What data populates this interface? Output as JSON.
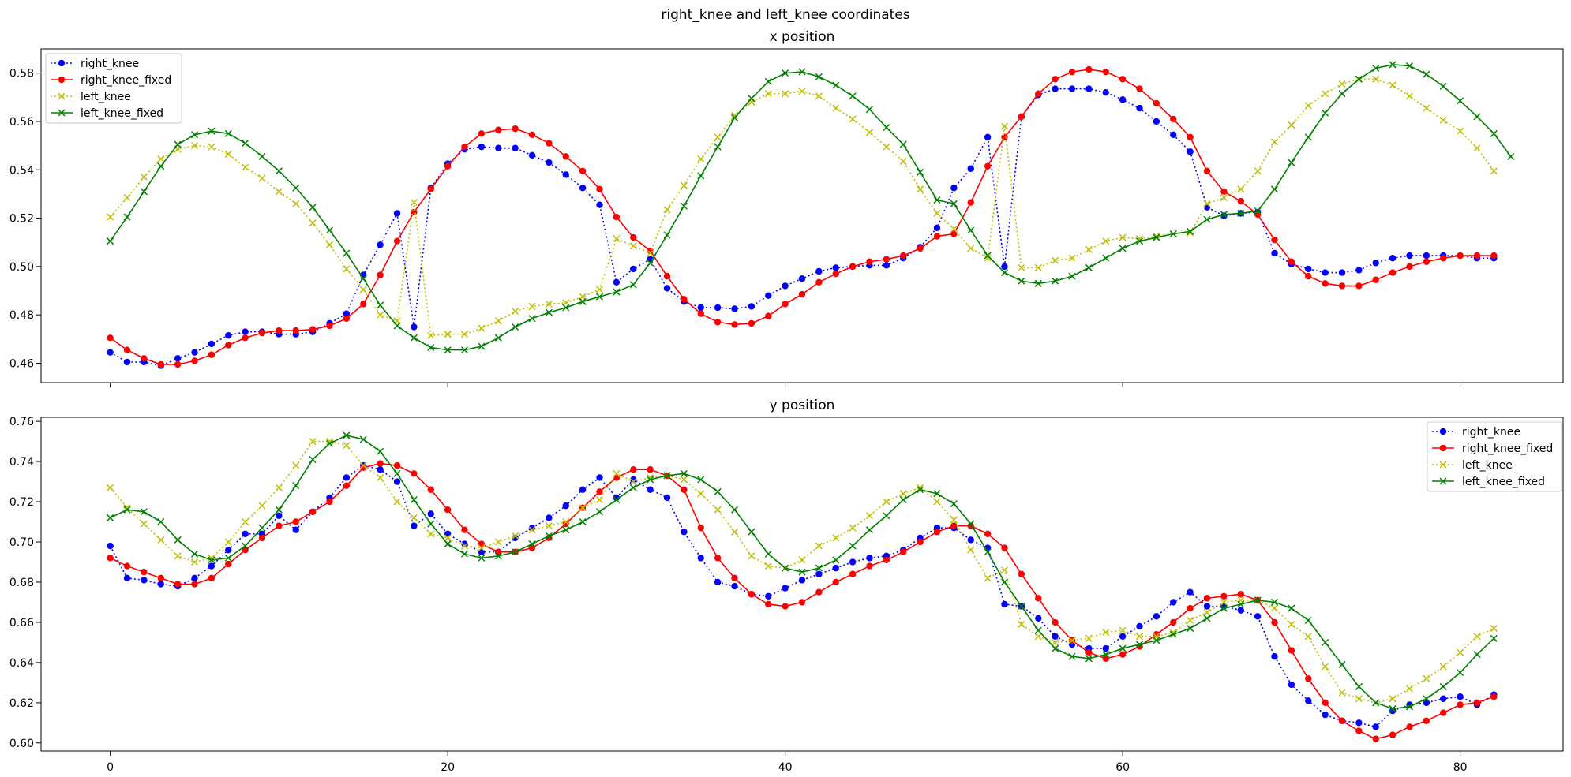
{
  "figure": {
    "title": "right_knee and left_knee coordinates"
  },
  "chart_data": [
    {
      "type": "line",
      "title": "x position",
      "xlabel": "",
      "ylabel": "",
      "xlim": [
        -4.1,
        86.1
      ],
      "ylim": [
        0.452,
        0.59
      ],
      "xticks": [
        0,
        20,
        40,
        60,
        80
      ],
      "yticks": [
        0.46,
        0.48,
        0.5,
        0.52,
        0.54,
        0.56,
        0.58
      ],
      "show_xtick_labels": false,
      "grid": false,
      "legend": "top-left",
      "series": [
        {
          "name": "right_knee",
          "color": "#0000ff",
          "linestyle": "dotted",
          "marker": "circle",
          "values": [
            0.4645,
            0.4605,
            0.4605,
            0.459,
            0.462,
            0.4645,
            0.468,
            0.4715,
            0.473,
            0.473,
            0.472,
            0.472,
            0.473,
            0.4765,
            0.4805,
            0.4965,
            0.509,
            0.522,
            0.475,
            0.5325,
            0.5425,
            0.5485,
            0.5495,
            0.549,
            0.549,
            0.546,
            0.543,
            0.538,
            0.5325,
            0.5255,
            0.4935,
            0.499,
            0.503,
            0.491,
            0.4855,
            0.483,
            0.483,
            0.4825,
            0.4835,
            0.488,
            0.492,
            0.495,
            0.498,
            0.4995,
            0.5,
            0.5005,
            0.5005,
            0.5035,
            0.508,
            0.516,
            0.5325,
            0.5405,
            0.5535,
            0.5,
            0.562,
            0.571,
            0.5735,
            0.5735,
            0.5735,
            0.572,
            0.569,
            0.5655,
            0.56,
            0.5545,
            0.5475,
            0.5245,
            0.521,
            0.522,
            0.5225,
            0.5055,
            0.501,
            0.499,
            0.4975,
            0.4975,
            0.4985,
            0.5015,
            0.5035,
            0.5045,
            0.5045,
            0.5045,
            0.5045,
            0.5035,
            0.5035
          ]
        },
        {
          "name": "right_knee_fixed",
          "color": "#ff0000",
          "linestyle": "solid",
          "marker": "circle",
          "values": [
            0.4705,
            0.4655,
            0.462,
            0.4595,
            0.4595,
            0.461,
            0.4635,
            0.4675,
            0.4705,
            0.4725,
            0.4735,
            0.4735,
            0.474,
            0.4755,
            0.4785,
            0.4845,
            0.4965,
            0.5105,
            0.5225,
            0.532,
            0.5415,
            0.5495,
            0.555,
            0.5565,
            0.557,
            0.5545,
            0.551,
            0.5455,
            0.5395,
            0.532,
            0.5205,
            0.512,
            0.5065,
            0.496,
            0.4865,
            0.4805,
            0.477,
            0.476,
            0.4765,
            0.4795,
            0.4845,
            0.4885,
            0.4935,
            0.497,
            0.5,
            0.502,
            0.503,
            0.5045,
            0.5075,
            0.5125,
            0.5135,
            0.5265,
            0.5415,
            0.5535,
            0.562,
            0.5715,
            0.5775,
            0.5805,
            0.5815,
            0.5805,
            0.5775,
            0.5735,
            0.5675,
            0.561,
            0.5535,
            0.5395,
            0.531,
            0.527,
            0.5215,
            0.511,
            0.502,
            0.496,
            0.493,
            0.492,
            0.492,
            0.4945,
            0.4975,
            0.5,
            0.502,
            0.5035,
            0.5045,
            0.5045,
            0.5045
          ]
        },
        {
          "name": "left_knee",
          "color": "#bfbf00",
          "linestyle": "dotted",
          "marker": "x",
          "values": [
            0.5205,
            0.5285,
            0.537,
            0.5445,
            0.5485,
            0.55,
            0.5495,
            0.5465,
            0.541,
            0.5365,
            0.531,
            0.526,
            0.518,
            0.509,
            0.499,
            0.4905,
            0.48,
            0.4775,
            0.5265,
            0.4715,
            0.472,
            0.472,
            0.4745,
            0.4775,
            0.4815,
            0.4835,
            0.4845,
            0.485,
            0.4875,
            0.4905,
            0.5115,
            0.5085,
            0.5055,
            0.5235,
            0.5335,
            0.5445,
            0.5535,
            0.5625,
            0.568,
            0.5715,
            0.5715,
            0.5725,
            0.5705,
            0.5655,
            0.561,
            0.5555,
            0.5495,
            0.5435,
            0.532,
            0.522,
            0.5155,
            0.5075,
            0.5035,
            0.558,
            0.4995,
            0.4995,
            0.5025,
            0.5035,
            0.507,
            0.5105,
            0.512,
            0.5115,
            0.5125,
            0.5135,
            0.514,
            0.526,
            0.5285,
            0.532,
            0.5395,
            0.5515,
            0.5585,
            0.5665,
            0.5715,
            0.5755,
            0.5775,
            0.5775,
            0.575,
            0.5705,
            0.5655,
            0.5605,
            0.556,
            0.549,
            0.5395
          ]
        },
        {
          "name": "left_knee_fixed",
          "color": "#008000",
          "linestyle": "solid",
          "marker": "x",
          "values": [
            0.5105,
            0.5205,
            0.531,
            0.5415,
            0.5505,
            0.5545,
            0.556,
            0.555,
            0.551,
            0.5455,
            0.5395,
            0.5325,
            0.5245,
            0.515,
            0.5055,
            0.495,
            0.484,
            0.4755,
            0.4705,
            0.4665,
            0.4655,
            0.4655,
            0.467,
            0.4705,
            0.475,
            0.4785,
            0.481,
            0.483,
            0.4855,
            0.4875,
            0.4895,
            0.4925,
            0.5015,
            0.513,
            0.525,
            0.5375,
            0.5495,
            0.5615,
            0.5695,
            0.5765,
            0.58,
            0.5805,
            0.5785,
            0.575,
            0.5705,
            0.565,
            0.5575,
            0.5505,
            0.539,
            0.5275,
            0.526,
            0.515,
            0.5045,
            0.4975,
            0.494,
            0.493,
            0.494,
            0.496,
            0.4995,
            0.5035,
            0.5075,
            0.5105,
            0.512,
            0.5135,
            0.5145,
            0.5195,
            0.5215,
            0.522,
            0.523,
            0.532,
            0.543,
            0.5535,
            0.5635,
            0.5715,
            0.5775,
            0.582,
            0.5835,
            0.583,
            0.5795,
            0.5745,
            0.5685,
            0.562,
            0.555,
            0.5455
          ]
        }
      ]
    },
    {
      "type": "line",
      "title": "y position",
      "xlabel": "",
      "ylabel": "",
      "xlim": [
        -4.1,
        86.1
      ],
      "ylim": [
        0.596,
        0.762
      ],
      "xticks": [
        0,
        20,
        40,
        60,
        80
      ],
      "yticks": [
        0.6,
        0.62,
        0.64,
        0.66,
        0.68,
        0.7,
        0.72,
        0.74,
        0.76
      ],
      "show_xtick_labels": true,
      "grid": false,
      "legend": "top-right",
      "series": [
        {
          "name": "right_knee",
          "color": "#0000ff",
          "linestyle": "dotted",
          "marker": "circle",
          "values": [
            0.698,
            0.682,
            0.681,
            0.679,
            0.678,
            0.682,
            0.688,
            0.696,
            0.704,
            0.704,
            0.713,
            0.706,
            0.715,
            0.722,
            0.732,
            0.738,
            0.736,
            0.73,
            0.708,
            0.714,
            0.704,
            0.699,
            0.695,
            0.695,
            0.702,
            0.707,
            0.712,
            0.718,
            0.726,
            0.732,
            0.722,
            0.731,
            0.726,
            0.722,
            0.705,
            0.692,
            0.68,
            0.678,
            0.674,
            0.673,
            0.677,
            0.681,
            0.684,
            0.687,
            0.69,
            0.692,
            0.693,
            0.696,
            0.702,
            0.707,
            0.707,
            0.701,
            0.697,
            0.669,
            0.668,
            0.662,
            0.653,
            0.649,
            0.647,
            0.647,
            0.653,
            0.658,
            0.663,
            0.67,
            0.675,
            0.668,
            0.668,
            0.666,
            0.663,
            0.643,
            0.629,
            0.621,
            0.614,
            0.611,
            0.61,
            0.608,
            0.616,
            0.619,
            0.62,
            0.622,
            0.623,
            0.619,
            0.624
          ]
        },
        {
          "name": "right_knee_fixed",
          "color": "#ff0000",
          "linestyle": "solid",
          "marker": "circle",
          "values": [
            0.692,
            0.688,
            0.685,
            0.682,
            0.679,
            0.679,
            0.682,
            0.689,
            0.696,
            0.702,
            0.708,
            0.71,
            0.715,
            0.72,
            0.728,
            0.737,
            0.739,
            0.738,
            0.734,
            0.726,
            0.716,
            0.706,
            0.699,
            0.695,
            0.695,
            0.697,
            0.702,
            0.709,
            0.717,
            0.725,
            0.732,
            0.736,
            0.736,
            0.733,
            0.726,
            0.707,
            0.692,
            0.682,
            0.674,
            0.669,
            0.668,
            0.67,
            0.675,
            0.68,
            0.684,
            0.688,
            0.691,
            0.695,
            0.7,
            0.705,
            0.708,
            0.708,
            0.704,
            0.697,
            0.684,
            0.672,
            0.66,
            0.651,
            0.645,
            0.642,
            0.644,
            0.648,
            0.654,
            0.66,
            0.667,
            0.672,
            0.673,
            0.674,
            0.671,
            0.66,
            0.646,
            0.632,
            0.62,
            0.611,
            0.606,
            0.602,
            0.604,
            0.608,
            0.611,
            0.615,
            0.619,
            0.62,
            0.623
          ]
        },
        {
          "name": "left_knee",
          "color": "#bfbf00",
          "linestyle": "dotted",
          "marker": "x",
          "values": [
            0.727,
            0.717,
            0.709,
            0.701,
            0.693,
            0.69,
            0.692,
            0.7,
            0.71,
            0.718,
            0.727,
            0.738,
            0.75,
            0.75,
            0.748,
            0.738,
            0.732,
            0.72,
            0.712,
            0.704,
            0.702,
            0.698,
            0.697,
            0.7,
            0.703,
            0.706,
            0.708,
            0.71,
            0.717,
            0.721,
            0.734,
            0.73,
            0.732,
            0.733,
            0.731,
            0.724,
            0.716,
            0.705,
            0.693,
            0.688,
            0.687,
            0.691,
            0.698,
            0.702,
            0.707,
            0.713,
            0.72,
            0.724,
            0.727,
            0.72,
            0.711,
            0.696,
            0.682,
            0.686,
            0.659,
            0.653,
            0.65,
            0.651,
            0.652,
            0.655,
            0.656,
            0.653,
            0.653,
            0.655,
            0.661,
            0.665,
            0.67,
            0.671,
            0.671,
            0.667,
            0.659,
            0.653,
            0.638,
            0.625,
            0.622,
            0.62,
            0.622,
            0.627,
            0.632,
            0.638,
            0.645,
            0.653,
            0.657
          ]
        },
        {
          "name": "left_knee_fixed",
          "color": "#008000",
          "linestyle": "solid",
          "marker": "x",
          "values": [
            0.712,
            0.716,
            0.715,
            0.71,
            0.701,
            0.694,
            0.691,
            0.692,
            0.698,
            0.707,
            0.716,
            0.728,
            0.741,
            0.749,
            0.753,
            0.751,
            0.745,
            0.734,
            0.721,
            0.709,
            0.699,
            0.694,
            0.692,
            0.693,
            0.695,
            0.699,
            0.703,
            0.706,
            0.71,
            0.715,
            0.721,
            0.727,
            0.731,
            0.733,
            0.734,
            0.731,
            0.725,
            0.716,
            0.705,
            0.694,
            0.687,
            0.685,
            0.687,
            0.691,
            0.698,
            0.706,
            0.713,
            0.721,
            0.726,
            0.724,
            0.719,
            0.709,
            0.695,
            0.68,
            0.668,
            0.656,
            0.647,
            0.643,
            0.642,
            0.644,
            0.647,
            0.649,
            0.651,
            0.654,
            0.657,
            0.662,
            0.667,
            0.669,
            0.671,
            0.67,
            0.667,
            0.661,
            0.65,
            0.639,
            0.628,
            0.62,
            0.617,
            0.618,
            0.622,
            0.628,
            0.635,
            0.644,
            0.652
          ]
        }
      ]
    }
  ]
}
